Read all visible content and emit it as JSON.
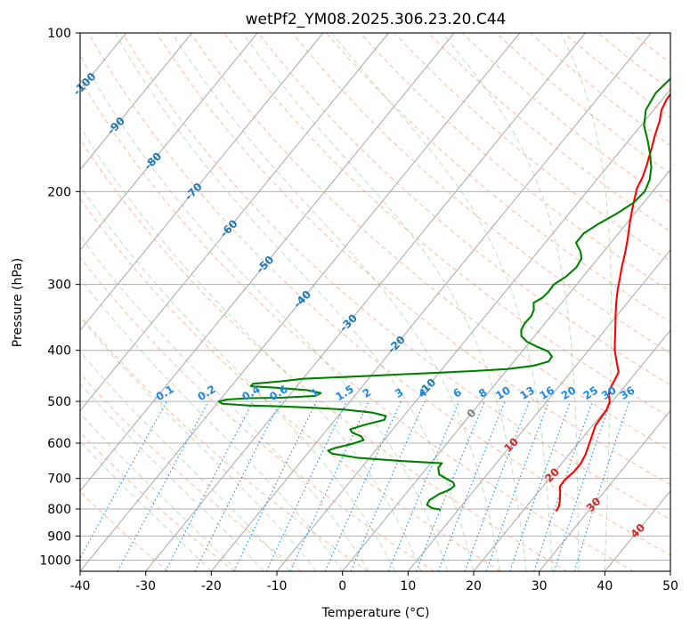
{
  "chart_data": {
    "type": "line",
    "title": "wetPf2_YM08.2025.306.23.20.C44",
    "xlabel": "Temperature (°C)",
    "ylabel": "Pressure (hPa)",
    "xlim": [
      -40,
      50
    ],
    "ylim": [
      1050,
      100
    ],
    "y_scale": "log",
    "grid": true,
    "x_ticks": [
      -40,
      -30,
      -20,
      -10,
      0,
      10,
      20,
      30,
      40,
      50
    ],
    "y_ticks": [
      100,
      200,
      300,
      400,
      500,
      600,
      700,
      800,
      900,
      1000
    ],
    "skew_label_values": [
      "-100",
      "-90",
      "-80",
      "-70",
      "-60",
      "-50",
      "-40",
      "-30",
      "-20",
      "-10",
      "0",
      "10",
      "20",
      "30",
      "40"
    ],
    "mixing_ratio_labels": [
      "0.1",
      "0.2",
      "0.4",
      "0.6",
      "1",
      "1.5",
      "2",
      "3",
      "4",
      "6",
      "8",
      "10",
      "13",
      "16",
      "20",
      "25",
      "30",
      "36"
    ],
    "series": [
      {
        "color": "#ff0000",
        "points": [
          [
            25.1,
            808
          ],
          [
            24.9,
            790
          ],
          [
            24.3,
            770
          ],
          [
            23.4,
            745
          ],
          [
            22.6,
            725
          ],
          [
            22.5,
            705
          ],
          [
            22.9,
            680
          ],
          [
            22.9,
            655
          ],
          [
            22.5,
            630
          ],
          [
            21.7,
            600
          ],
          [
            21.0,
            575
          ],
          [
            20.4,
            555
          ],
          [
            20.3,
            537
          ],
          [
            20.2,
            520
          ],
          [
            19.6,
            500
          ],
          [
            18.7,
            487
          ],
          [
            18.1,
            475
          ],
          [
            17.8,
            460
          ],
          [
            17.3,
            440
          ],
          [
            15.5,
            418
          ],
          [
            14.0,
            400
          ],
          [
            13.0,
            386
          ],
          [
            12.0,
            372
          ],
          [
            10.7,
            355
          ],
          [
            9.5,
            340
          ],
          [
            8.3,
            325
          ],
          [
            6.9,
            307
          ],
          [
            5.8,
            292
          ],
          [
            4.7,
            278
          ],
          [
            3.5,
            262
          ],
          [
            2.2,
            247
          ],
          [
            0.3,
            228
          ],
          [
            -0.8,
            217
          ],
          [
            -1.8,
            207
          ],
          [
            -2.8,
            197
          ],
          [
            -3.3,
            188
          ],
          [
            -4.2,
            178
          ],
          [
            -5.6,
            165
          ],
          [
            -6.7,
            156
          ],
          [
            -7.7,
            147
          ],
          [
            -8.8,
            140
          ],
          [
            -9.3,
            134
          ],
          [
            -9.6,
            126
          ],
          [
            -10.6,
            118
          ],
          [
            -11.9,
            112
          ],
          [
            -13.0,
            106
          ],
          [
            -13.6,
            100
          ]
        ]
      },
      {
        "color": "#008000",
        "points": [
          [
            7.3,
            802
          ],
          [
            5.8,
            797
          ],
          [
            4.6,
            785
          ],
          [
            4.4,
            770
          ],
          [
            5.1,
            750
          ],
          [
            6.2,
            735
          ],
          [
            6.4,
            722
          ],
          [
            5.8,
            712
          ],
          [
            4.6,
            703
          ],
          [
            2.7,
            688
          ],
          [
            1.7,
            668
          ],
          [
            1.7,
            655
          ],
          [
            -4.5,
            649
          ],
          [
            -11.7,
            640
          ],
          [
            -16.3,
            628
          ],
          [
            -17.2,
            620
          ],
          [
            -16.5,
            613
          ],
          [
            -14.4,
            602
          ],
          [
            -13.1,
            592
          ],
          [
            -14.0,
            582
          ],
          [
            -15.8,
            573
          ],
          [
            -16.5,
            565
          ],
          [
            -14.7,
            553
          ],
          [
            -12.5,
            542
          ],
          [
            -12.7,
            533
          ],
          [
            -15.2,
            525
          ],
          [
            -20.0,
            518
          ],
          [
            -25.0,
            514
          ],
          [
            -30.0,
            511
          ],
          [
            -35.0,
            509
          ],
          [
            -39.2,
            505
          ],
          [
            -40.0,
            500
          ],
          [
            -39.0,
            496
          ],
          [
            -36.0,
            493
          ],
          [
            -31.0,
            492
          ],
          [
            -26.0,
            488
          ],
          [
            -25.5,
            482
          ],
          [
            -28.0,
            476
          ],
          [
            -33.0,
            471
          ],
          [
            -37.0,
            468
          ],
          [
            -37.0,
            463
          ],
          [
            -33.0,
            458
          ],
          [
            -30.0,
            453
          ],
          [
            -25.0,
            450
          ],
          [
            -20.0,
            447
          ],
          [
            -15.0,
            444
          ],
          [
            -10.0,
            441
          ],
          [
            -5.0,
            438
          ],
          [
            0.0,
            434
          ],
          [
            3.5,
            428
          ],
          [
            5.3,
            420
          ],
          [
            5.2,
            411
          ],
          [
            4.0,
            402
          ],
          [
            1.5,
            393
          ],
          [
            -0.5,
            385
          ],
          [
            -2.0,
            376
          ],
          [
            -2.8,
            366
          ],
          [
            -3.1,
            355
          ],
          [
            -3.0,
            344
          ],
          [
            -3.4,
            335
          ],
          [
            -4.3,
            325
          ],
          [
            -3.6,
            318
          ],
          [
            -3.4,
            310
          ],
          [
            -3.5,
            300
          ],
          [
            -2.6,
            290
          ],
          [
            -2.2,
            278
          ],
          [
            -2.5,
            268
          ],
          [
            -3.5,
            260
          ],
          [
            -5.3,
            250
          ],
          [
            -5.3,
            240
          ],
          [
            -4.2,
            230
          ],
          [
            -2.7,
            220
          ],
          [
            -1.5,
            210
          ],
          [
            -1.2,
            200
          ],
          [
            -1.9,
            190
          ],
          [
            -3.2,
            180
          ],
          [
            -5.0,
            170
          ],
          [
            -7.1,
            160
          ],
          [
            -9.5,
            150
          ],
          [
            -11.2,
            140
          ],
          [
            -11.8,
            130
          ],
          [
            -11.2,
            120
          ],
          [
            -11.1,
            110
          ],
          [
            -12.4,
            104
          ],
          [
            -14.0,
            100
          ]
        ]
      }
    ]
  }
}
